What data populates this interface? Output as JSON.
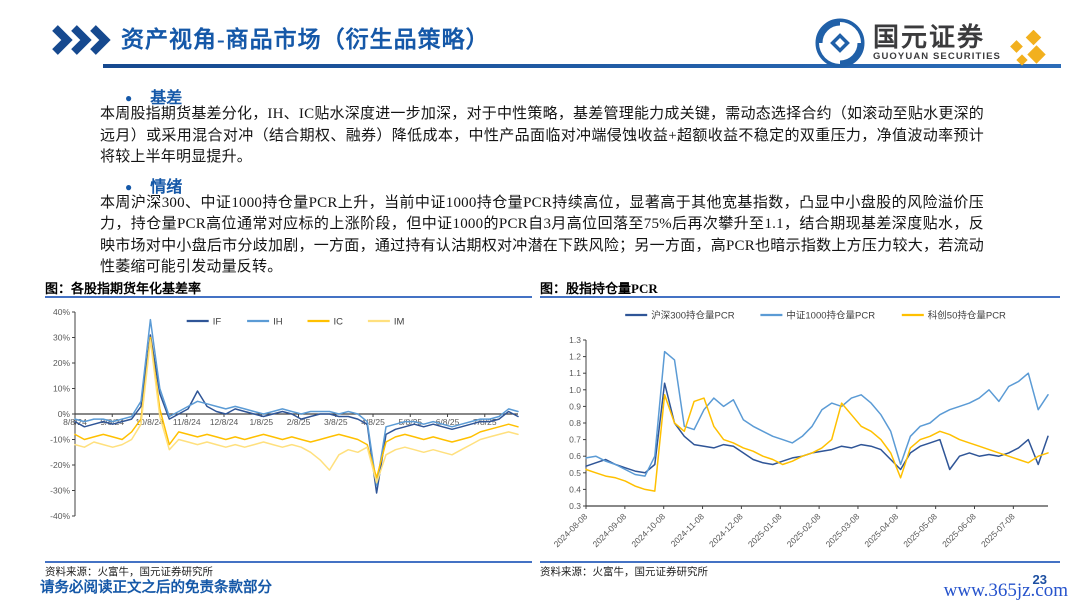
{
  "header": {
    "title": "资产视角-商品市场（衍生品策略）"
  },
  "logo": {
    "cn": "国元证券",
    "en": "GUOYUAN SECURITIES"
  },
  "ui": {
    "bullet_glyph": "●"
  },
  "sections": [
    {
      "heading": "基差",
      "body": "本周股指期货基差分化，IH、IC贴水深度进一步加深，对于中性策略，基差管理能力成关键，需动态选择合约（如滚动至贴水更深的远月）或采用混合对冲（结合期权、融券）降低成本，中性产品面临对冲端侵蚀收益+超额收益不稳定的双重压力，净值波动率预计将较上半年明显提升。"
    },
    {
      "heading": "情绪",
      "body": "本周沪深300、中证1000持仓量PCR上升，当前中证1000持仓量PCR持续高位，显著高于其他宽基指数，凸显中小盘股的风险溢价压力，持仓量PCR高位通常对应标的上涨阶段，但中证1000的PCR自3月高位回落至75%后再次攀升至1.1，结合期现基差深度贴水，反映市场对中小盘后市分歧加剧，一方面，通过持有认沽期权对冲潜在下跌风险；另一方面，高PCR也暗示指数上方压力较大，若流动性萎缩可能引发动量反转。"
    }
  ],
  "chart_data": [
    {
      "type": "line",
      "title": "图：各股指期货年化基差率",
      "ylim": [
        -40,
        40
      ],
      "yticks": [
        -40,
        -30,
        -20,
        -10,
        0,
        10,
        20,
        30,
        40
      ],
      "ytick_format": "percent",
      "grid": false,
      "x_axis_at_zero": true,
      "legend_position": "top-inside",
      "xlabels": [
        "8/8/24",
        "9/8/24",
        "10/8/24",
        "11/8/24",
        "12/8/24",
        "1/8/25",
        "2/8/25",
        "3/8/25",
        "4/8/25",
        "5/8/25",
        "6/8/25",
        "7/8/25"
      ],
      "xlabel_rotation": 0,
      "series": [
        {
          "name": "IF",
          "color": "#2F5597",
          "values": [
            -3,
            -5,
            -4,
            -3,
            -4,
            -3,
            -2,
            3,
            31,
            8,
            -2,
            0,
            2,
            9,
            3,
            1,
            0,
            2,
            1,
            0,
            -1,
            0,
            1,
            0,
            -2,
            -1,
            0,
            0,
            -1,
            -1,
            -2,
            -4,
            -31,
            -8,
            -6,
            -5,
            -4,
            -5,
            -4,
            -5,
            -6,
            -5,
            -4,
            -3,
            -3,
            -2,
            1,
            -1
          ]
        },
        {
          "name": "IH",
          "color": "#5B9BD5",
          "values": [
            -2,
            -3,
            -2,
            -2,
            -3,
            -2,
            -1,
            5,
            37,
            10,
            -1,
            1,
            3,
            5,
            4,
            3,
            2,
            3,
            2,
            1,
            0,
            1,
            2,
            1,
            0,
            1,
            1,
            1,
            0,
            1,
            0,
            -3,
            -28,
            -5,
            -4,
            -3,
            -3,
            -4,
            -3,
            -4,
            -5,
            -4,
            -3,
            -2,
            -2,
            -1,
            2,
            1
          ]
        },
        {
          "name": "IC",
          "color": "#FFC000",
          "values": [
            -8,
            -10,
            -9,
            -8,
            -9,
            -10,
            -7,
            -2,
            30,
            2,
            -12,
            -7,
            -8,
            -9,
            -8,
            -9,
            -10,
            -9,
            -10,
            -9,
            -8,
            -9,
            -10,
            -9,
            -10,
            -11,
            -10,
            -9,
            -8,
            -9,
            -10,
            -12,
            -25,
            -11,
            -9,
            -8,
            -9,
            -10,
            -9,
            -10,
            -11,
            -10,
            -9,
            -7,
            -6,
            -5,
            -4,
            -5
          ]
        },
        {
          "name": "IM",
          "color": "#FFE07E",
          "values": [
            -12,
            -13,
            -11,
            -12,
            -13,
            -12,
            -10,
            -4,
            29,
            -1,
            -14,
            -10,
            -11,
            -12,
            -11,
            -12,
            -13,
            -12,
            -13,
            -12,
            -11,
            -12,
            -13,
            -12,
            -13,
            -15,
            -18,
            -22,
            -16,
            -14,
            -15,
            -13,
            -27,
            -16,
            -14,
            -13,
            -14,
            -15,
            -14,
            -15,
            -16,
            -14,
            -12,
            -10,
            -9,
            -8,
            -7,
            -8
          ]
        }
      ]
    },
    {
      "type": "line",
      "title": "图：股指持仓量PCR",
      "ylim": [
        0.3,
        1.3
      ],
      "yticks": [
        0.3,
        0.4,
        0.5,
        0.6,
        0.7,
        0.8,
        0.9,
        1.0,
        1.1,
        1.2,
        1.3
      ],
      "ytick_format": "decimal1",
      "grid": false,
      "x_axis_at_zero": false,
      "legend_position": "above",
      "xlabels": [
        "2024-08-08",
        "2024-09-08",
        "2024-10-08",
        "2024-11-08",
        "2024-12-08",
        "2025-01-08",
        "2025-02-08",
        "2025-03-08",
        "2025-04-08",
        "2025-05-08",
        "2025-06-08",
        "2025-07-08"
      ],
      "xlabel_rotation": -45,
      "series": [
        {
          "name": "沪深300持仓量PCR",
          "color": "#2F5597",
          "values": [
            0.54,
            0.56,
            0.58,
            0.55,
            0.53,
            0.51,
            0.5,
            0.55,
            1.04,
            0.8,
            0.72,
            0.67,
            0.66,
            0.65,
            0.67,
            0.66,
            0.62,
            0.58,
            0.56,
            0.55,
            0.57,
            0.59,
            0.6,
            0.62,
            0.63,
            0.64,
            0.66,
            0.65,
            0.67,
            0.66,
            0.64,
            0.58,
            0.52,
            0.62,
            0.66,
            0.68,
            0.7,
            0.52,
            0.6,
            0.62,
            0.6,
            0.61,
            0.6,
            0.62,
            0.65,
            0.7,
            0.55,
            0.72
          ]
        },
        {
          "name": "中证1000持仓量PCR",
          "color": "#5B9BD5",
          "values": [
            0.59,
            0.6,
            0.57,
            0.55,
            0.52,
            0.49,
            0.48,
            0.6,
            1.23,
            1.18,
            0.78,
            0.76,
            0.88,
            0.95,
            0.9,
            0.94,
            0.82,
            0.78,
            0.75,
            0.72,
            0.7,
            0.68,
            0.72,
            0.78,
            0.88,
            0.92,
            0.9,
            0.95,
            0.97,
            0.92,
            0.85,
            0.75,
            0.55,
            0.72,
            0.78,
            0.8,
            0.85,
            0.88,
            0.9,
            0.92,
            0.95,
            1.0,
            0.93,
            1.02,
            1.05,
            1.1,
            0.88,
            0.97
          ]
        },
        {
          "name": "科创50持仓量PCR",
          "color": "#FFC000",
          "values": [
            0.52,
            0.5,
            0.48,
            0.47,
            0.45,
            0.42,
            0.4,
            0.39,
            0.97,
            0.8,
            0.75,
            0.93,
            0.95,
            0.78,
            0.7,
            0.68,
            0.65,
            0.63,
            0.6,
            0.58,
            0.55,
            0.57,
            0.6,
            0.62,
            0.65,
            0.7,
            0.92,
            0.85,
            0.78,
            0.75,
            0.7,
            0.62,
            0.47,
            0.65,
            0.7,
            0.72,
            0.75,
            0.73,
            0.7,
            0.68,
            0.66,
            0.64,
            0.62,
            0.6,
            0.58,
            0.56,
            0.6,
            0.62
          ]
        }
      ]
    }
  ],
  "footer": {
    "source_left": "资料来源：火富牛，国元证券研究所",
    "source_right": "资料来源：火富牛，国元证券研究所",
    "disclaimer": "请务必阅读正文之后的免责条款部分",
    "page_number": "23",
    "watermark": "www.365jz.com"
  },
  "colors": {
    "accent_blue": "#1558A8",
    "figure_rule_blue": "#4472C4",
    "watermark_blue": "#2653CC",
    "axis_gray": "#595959"
  }
}
